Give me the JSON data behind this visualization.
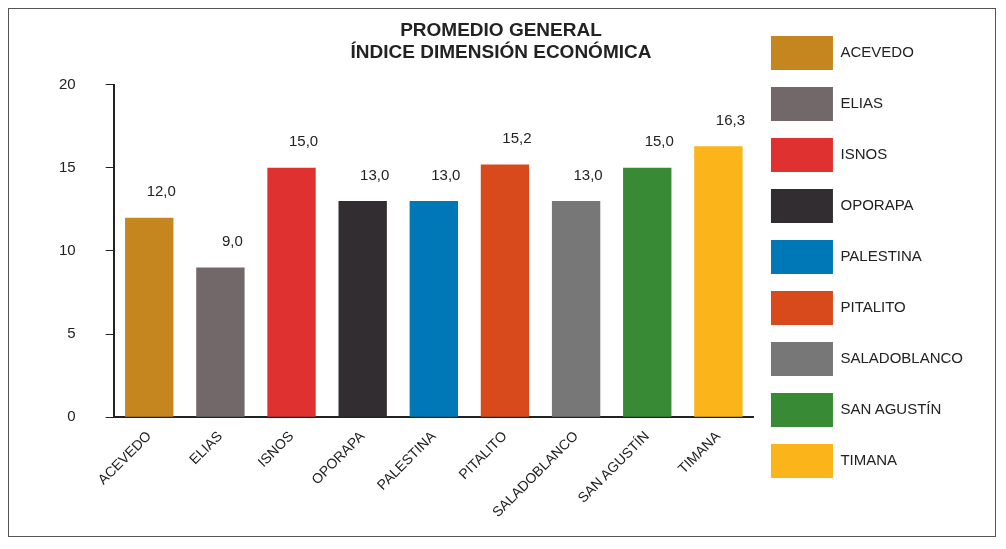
{
  "chart_data": {
    "type": "bar",
    "title": "PROMEDIO GENERAL\nÍNDICE DIMENSIÓN ECONÓMICA",
    "categories": [
      "ACEVEDO",
      "ELIAS",
      "ISNOS",
      "OPORAPA",
      "PALESTINA",
      "PITALITO",
      "SALADOBLANCO",
      "SAN AGUSTÍN",
      "TIMANA"
    ],
    "series": [
      {
        "name": "ACEVEDO",
        "color": "#c5861f",
        "values": [
          12.0,
          null,
          null,
          null,
          null,
          null,
          null,
          null,
          null
        ],
        "value_labels": [
          "12,0",
          null,
          null,
          null,
          null,
          null,
          null,
          null,
          null
        ]
      },
      {
        "name": "ELIAS",
        "color": "#72686a",
        "values": [
          null,
          9.0,
          null,
          null,
          null,
          null,
          null,
          null,
          null
        ],
        "value_labels": [
          null,
          "9,0",
          null,
          null,
          null,
          null,
          null,
          null,
          null
        ]
      },
      {
        "name": "ISNOS",
        "color": "#e03131",
        "values": [
          null,
          null,
          15.0,
          null,
          null,
          null,
          null,
          null,
          null
        ],
        "value_labels": [
          null,
          null,
          "15,0",
          null,
          null,
          null,
          null,
          null,
          null
        ]
      },
      {
        "name": "OPORAPA",
        "color": "#322d30",
        "values": [
          null,
          null,
          null,
          13.0,
          null,
          null,
          null,
          null,
          null
        ],
        "value_labels": [
          null,
          null,
          null,
          "13,0",
          null,
          null,
          null,
          null,
          null
        ]
      },
      {
        "name": "PALESTINA",
        "color": "#0077b6",
        "values": [
          null,
          null,
          null,
          null,
          13.0,
          null,
          null,
          null,
          null
        ],
        "value_labels": [
          null,
          null,
          null,
          null,
          "13,0",
          null,
          null,
          null,
          null
        ]
      },
      {
        "name": "PITALITO",
        "color": "#d84a1b",
        "values": [
          null,
          null,
          null,
          null,
          null,
          15.2,
          null,
          null,
          null
        ],
        "value_labels": [
          null,
          null,
          null,
          null,
          null,
          "15,2",
          null,
          null,
          null
        ]
      },
      {
        "name": "SALADOBLANCO",
        "color": "#777777",
        "values": [
          null,
          null,
          null,
          null,
          null,
          null,
          13.0,
          null,
          null
        ],
        "value_labels": [
          null,
          null,
          null,
          null,
          null,
          null,
          "13,0",
          null,
          null
        ]
      },
      {
        "name": "SAN AGUSTÍN",
        "color": "#388a35",
        "values": [
          null,
          null,
          null,
          null,
          null,
          null,
          null,
          15.0,
          null
        ],
        "value_labels": [
          null,
          null,
          null,
          null,
          null,
          null,
          null,
          "15,0",
          null
        ]
      },
      {
        "name": "TIMANA",
        "color": "#fbb41a",
        "values": [
          null,
          null,
          null,
          null,
          null,
          null,
          null,
          null,
          16.3
        ],
        "value_labels": [
          null,
          null,
          null,
          null,
          null,
          null,
          null,
          null,
          "16,3"
        ]
      }
    ],
    "ylim": [
      0,
      20
    ],
    "yticks": [
      0,
      5,
      10,
      15,
      20
    ],
    "grid": false,
    "legend": "right"
  }
}
